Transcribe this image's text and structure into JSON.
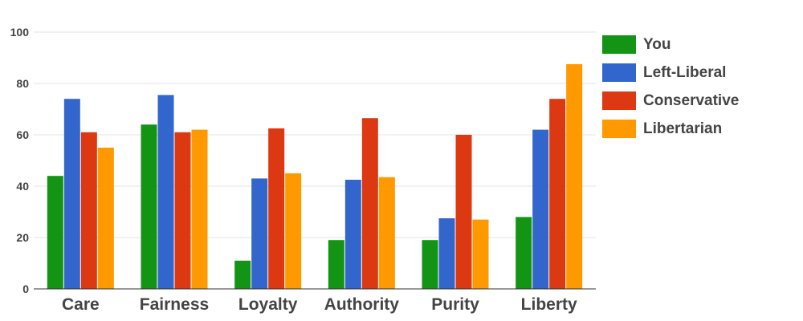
{
  "chart_data": {
    "type": "bar",
    "categories": [
      "Care",
      "Fairness",
      "Loyalty",
      "Authority",
      "Purity",
      "Liberty"
    ],
    "series": [
      {
        "name": "You",
        "color": "#149414",
        "values": [
          44,
          64,
          11,
          19,
          19,
          28
        ]
      },
      {
        "name": "Left-Liberal",
        "color": "#3366CC",
        "values": [
          74,
          75.5,
          43,
          42.5,
          27.5,
          62
        ]
      },
      {
        "name": "Conservative",
        "color": "#DC3912",
        "values": [
          61,
          61,
          62.5,
          66.5,
          60,
          74
        ]
      },
      {
        "name": "Libertarian",
        "color": "#FF9900",
        "values": [
          55,
          62,
          45,
          43.5,
          27,
          87.5
        ]
      }
    ],
    "y_ticks": [
      0,
      20,
      40,
      60,
      80,
      100
    ],
    "ylim": [
      0,
      100
    ],
    "grid": true,
    "legend_position": "right"
  }
}
